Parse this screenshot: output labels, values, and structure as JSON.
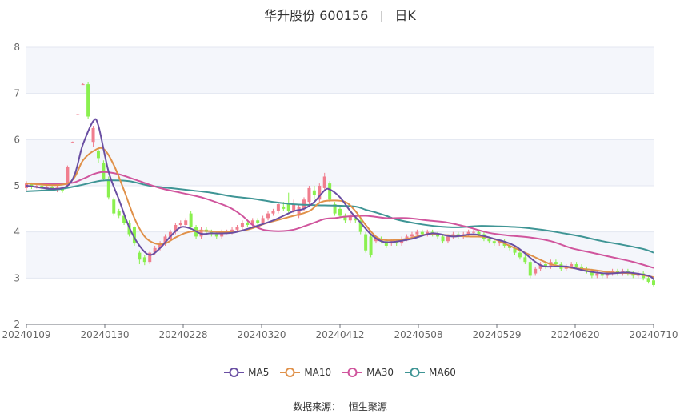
{
  "title": {
    "name": "华升股份 600156",
    "period": "日K"
  },
  "source": {
    "label": "数据来源：",
    "value": "恒生聚源"
  },
  "colors": {
    "up": "#f07e8e",
    "down": "#8af04f",
    "ma5": "#6a4fa3",
    "ma10": "#e0914a",
    "ma30": "#d0559d",
    "ma60": "#3f9595",
    "band": "#f4f6fb",
    "grid": "#e3e7f0"
  },
  "chart_data": {
    "type": "candlestick",
    "ylim": [
      2,
      8
    ],
    "yticks": [
      "2",
      "3",
      "4",
      "5",
      "6",
      "7",
      "8"
    ],
    "xticks": [
      "20240109",
      "20240130",
      "20240228",
      "20240320",
      "20240412",
      "20240508",
      "20240529",
      "20240620",
      "20240710"
    ],
    "legend": [
      "MA5",
      "MA10",
      "MA30",
      "MA60"
    ],
    "candles": [
      {
        "o": 4.95,
        "c": 5.05,
        "h": 5.1,
        "l": 4.9
      },
      {
        "o": 5.03,
        "c": 4.98,
        "h": 5.07,
        "l": 4.93
      },
      {
        "o": 4.97,
        "c": 5.0,
        "h": 5.04,
        "l": 4.94
      },
      {
        "o": 5.0,
        "c": 4.95,
        "h": 5.03,
        "l": 4.91
      },
      {
        "o": 4.95,
        "c": 4.98,
        "h": 5.02,
        "l": 4.92
      },
      {
        "o": 4.98,
        "c": 4.93,
        "h": 5.01,
        "l": 4.89
      },
      {
        "o": 4.92,
        "c": 4.96,
        "h": 5.0,
        "l": 4.86
      },
      {
        "o": 4.95,
        "c": 4.9,
        "h": 4.98,
        "l": 4.85
      },
      {
        "o": 5.0,
        "c": 5.4,
        "h": 5.44,
        "l": 4.98
      },
      {
        "o": 5.95,
        "c": 5.95,
        "h": 5.96,
        "l": 5.94
      },
      {
        "o": 6.55,
        "c": 6.55,
        "h": 6.56,
        "l": 6.54
      },
      {
        "o": 7.2,
        "c": 7.2,
        "h": 7.22,
        "l": 7.19
      },
      {
        "o": 7.2,
        "c": 6.5,
        "h": 7.25,
        "l": 6.45
      },
      {
        "o": 5.95,
        "c": 6.25,
        "h": 6.3,
        "l": 5.85
      },
      {
        "o": 5.75,
        "c": 5.6,
        "h": 5.8,
        "l": 5.5
      },
      {
        "o": 5.5,
        "c": 5.15,
        "h": 5.55,
        "l": 5.1
      },
      {
        "o": 5.15,
        "c": 4.75,
        "h": 5.2,
        "l": 4.7
      },
      {
        "o": 4.7,
        "c": 4.4,
        "h": 4.75,
        "l": 4.35
      },
      {
        "o": 4.45,
        "c": 4.35,
        "h": 4.5,
        "l": 4.3
      },
      {
        "o": 4.35,
        "c": 4.2,
        "h": 4.4,
        "l": 4.15
      },
      {
        "o": 4.2,
        "c": 3.95,
        "h": 4.25,
        "l": 3.9
      },
      {
        "o": 4.1,
        "c": 3.75,
        "h": 4.12,
        "l": 3.7
      },
      {
        "o": 3.55,
        "c": 3.4,
        "h": 3.6,
        "l": 3.3
      },
      {
        "o": 3.45,
        "c": 3.35,
        "h": 3.5,
        "l": 3.28
      },
      {
        "o": 3.35,
        "c": 3.55,
        "h": 3.6,
        "l": 3.3
      },
      {
        "o": 3.55,
        "c": 3.65,
        "h": 3.7,
        "l": 3.5
      },
      {
        "o": 3.65,
        "c": 3.75,
        "h": 3.8,
        "l": 3.6
      },
      {
        "o": 3.75,
        "c": 3.9,
        "h": 3.95,
        "l": 3.7
      },
      {
        "o": 3.85,
        "c": 4.0,
        "h": 4.05,
        "l": 3.8
      },
      {
        "o": 4.0,
        "c": 4.15,
        "h": 4.2,
        "l": 3.95
      },
      {
        "o": 4.15,
        "c": 4.2,
        "h": 4.25,
        "l": 4.1
      },
      {
        "o": 4.15,
        "c": 4.25,
        "h": 4.3,
        "l": 4.1
      },
      {
        "o": 4.4,
        "c": 4.1,
        "h": 4.45,
        "l": 4.05
      },
      {
        "o": 4.1,
        "c": 3.9,
        "h": 4.15,
        "l": 3.85
      },
      {
        "o": 3.9,
        "c": 4.05,
        "h": 4.1,
        "l": 3.85
      },
      {
        "o": 4.05,
        "c": 4.0,
        "h": 4.1,
        "l": 3.95
      },
      {
        "o": 4.0,
        "c": 3.95,
        "h": 4.05,
        "l": 3.9
      },
      {
        "o": 3.95,
        "c": 3.9,
        "h": 4.0,
        "l": 3.85
      },
      {
        "o": 3.9,
        "c": 4.0,
        "h": 4.05,
        "l": 3.85
      },
      {
        "o": 4.0,
        "c": 4.0,
        "h": 4.05,
        "l": 3.95
      },
      {
        "o": 4.0,
        "c": 4.05,
        "h": 4.1,
        "l": 3.95
      },
      {
        "o": 4.05,
        "c": 4.1,
        "h": 4.15,
        "l": 4.0
      },
      {
        "o": 4.1,
        "c": 4.2,
        "h": 4.25,
        "l": 4.05
      },
      {
        "o": 4.2,
        "c": 4.15,
        "h": 4.25,
        "l": 4.1
      },
      {
        "o": 4.15,
        "c": 4.25,
        "h": 4.3,
        "l": 4.1
      },
      {
        "o": 4.25,
        "c": 4.2,
        "h": 4.3,
        "l": 4.15
      },
      {
        "o": 4.2,
        "c": 4.3,
        "h": 4.35,
        "l": 4.15
      },
      {
        "o": 4.3,
        "c": 4.4,
        "h": 4.45,
        "l": 4.25
      },
      {
        "o": 4.4,
        "c": 4.45,
        "h": 4.5,
        "l": 4.35
      },
      {
        "o": 4.45,
        "c": 4.6,
        "h": 4.65,
        "l": 4.4
      },
      {
        "o": 4.55,
        "c": 4.5,
        "h": 4.65,
        "l": 4.45
      },
      {
        "o": 4.6,
        "c": 4.45,
        "h": 4.85,
        "l": 4.4
      },
      {
        "o": 4.45,
        "c": 4.6,
        "h": 4.7,
        "l": 4.4
      },
      {
        "o": 4.35,
        "c": 4.55,
        "h": 4.6,
        "l": 4.3
      },
      {
        "o": 4.5,
        "c": 4.7,
        "h": 4.75,
        "l": 4.45
      },
      {
        "o": 4.65,
        "c": 4.95,
        "h": 5.0,
        "l": 4.6
      },
      {
        "o": 4.9,
        "c": 4.8,
        "h": 5.0,
        "l": 4.7
      },
      {
        "o": 4.7,
        "c": 5.0,
        "h": 5.05,
        "l": 4.65
      },
      {
        "o": 4.95,
        "c": 5.2,
        "h": 5.28,
        "l": 4.9
      },
      {
        "o": 5.05,
        "c": 4.7,
        "h": 5.1,
        "l": 4.65
      },
      {
        "o": 4.6,
        "c": 4.4,
        "h": 4.65,
        "l": 4.35
      },
      {
        "o": 4.5,
        "c": 4.35,
        "h": 4.55,
        "l": 4.3
      },
      {
        "o": 4.35,
        "c": 4.25,
        "h": 4.4,
        "l": 4.2
      },
      {
        "o": 4.25,
        "c": 4.35,
        "h": 4.4,
        "l": 4.2
      },
      {
        "o": 4.3,
        "c": 4.25,
        "h": 4.35,
        "l": 4.2
      },
      {
        "o": 4.25,
        "c": 4.0,
        "h": 4.3,
        "l": 3.95
      },
      {
        "o": 3.95,
        "c": 3.6,
        "h": 4.0,
        "l": 3.55
      },
      {
        "o": 3.9,
        "c": 3.5,
        "h": 3.95,
        "l": 3.45
      },
      {
        "o": 3.8,
        "c": 3.85,
        "h": 3.9,
        "l": 3.75
      },
      {
        "o": 3.85,
        "c": 3.8,
        "h": 3.9,
        "l": 3.75
      },
      {
        "o": 3.8,
        "c": 3.7,
        "h": 3.85,
        "l": 3.65
      },
      {
        "o": 3.75,
        "c": 3.8,
        "h": 3.85,
        "l": 3.7
      },
      {
        "o": 3.8,
        "c": 3.75,
        "h": 3.85,
        "l": 3.7
      },
      {
        "o": 3.75,
        "c": 3.85,
        "h": 3.9,
        "l": 3.7
      },
      {
        "o": 3.85,
        "c": 3.9,
        "h": 3.95,
        "l": 3.8
      },
      {
        "o": 3.9,
        "c": 3.95,
        "h": 4.0,
        "l": 3.85
      },
      {
        "o": 3.95,
        "c": 4.0,
        "h": 4.05,
        "l": 3.9
      },
      {
        "o": 4.0,
        "c": 3.95,
        "h": 4.05,
        "l": 3.9
      },
      {
        "o": 3.95,
        "c": 4.0,
        "h": 4.05,
        "l": 3.9
      },
      {
        "o": 4.0,
        "c": 3.95,
        "h": 4.05,
        "l": 3.9
      },
      {
        "o": 3.95,
        "c": 3.9,
        "h": 4.0,
        "l": 3.85
      },
      {
        "o": 3.9,
        "c": 3.8,
        "h": 3.95,
        "l": 3.75
      },
      {
        "o": 3.8,
        "c": 3.9,
        "h": 3.95,
        "l": 3.75
      },
      {
        "o": 3.9,
        "c": 3.95,
        "h": 4.0,
        "l": 3.85
      },
      {
        "o": 3.95,
        "c": 3.9,
        "h": 4.0,
        "l": 3.85
      },
      {
        "o": 3.9,
        "c": 3.95,
        "h": 4.0,
        "l": 3.85
      },
      {
        "o": 3.95,
        "c": 4.0,
        "h": 4.05,
        "l": 3.9
      },
      {
        "o": 4.0,
        "c": 4.0,
        "h": 4.05,
        "l": 3.95
      },
      {
        "o": 4.0,
        "c": 3.95,
        "h": 4.05,
        "l": 3.9
      },
      {
        "o": 3.95,
        "c": 3.85,
        "h": 4.0,
        "l": 3.8
      },
      {
        "o": 3.85,
        "c": 3.8,
        "h": 3.9,
        "l": 3.75
      },
      {
        "o": 3.8,
        "c": 3.75,
        "h": 3.85,
        "l": 3.7
      },
      {
        "o": 3.75,
        "c": 3.8,
        "h": 3.85,
        "l": 3.7
      },
      {
        "o": 3.8,
        "c": 3.7,
        "h": 3.85,
        "l": 3.65
      },
      {
        "o": 3.7,
        "c": 3.65,
        "h": 3.75,
        "l": 3.6
      },
      {
        "o": 3.65,
        "c": 3.55,
        "h": 3.7,
        "l": 3.5
      },
      {
        "o": 3.55,
        "c": 3.45,
        "h": 3.6,
        "l": 3.4
      },
      {
        "o": 3.45,
        "c": 3.35,
        "h": 3.5,
        "l": 3.3
      },
      {
        "o": 3.35,
        "c": 3.05,
        "h": 3.4,
        "l": 3.0
      },
      {
        "o": 3.1,
        "c": 3.2,
        "h": 3.25,
        "l": 3.05
      },
      {
        "o": 3.2,
        "c": 3.3,
        "h": 3.35,
        "l": 3.15
      },
      {
        "o": 3.3,
        "c": 3.25,
        "h": 3.35,
        "l": 3.2
      },
      {
        "o": 3.25,
        "c": 3.35,
        "h": 3.4,
        "l": 3.2
      },
      {
        "o": 3.35,
        "c": 3.3,
        "h": 3.4,
        "l": 3.25
      },
      {
        "o": 3.3,
        "c": 3.2,
        "h": 3.35,
        "l": 3.15
      },
      {
        "o": 3.2,
        "c": 3.25,
        "h": 3.3,
        "l": 3.15
      },
      {
        "o": 3.25,
        "c": 3.3,
        "h": 3.35,
        "l": 3.2
      },
      {
        "o": 3.3,
        "c": 3.25,
        "h": 3.35,
        "l": 3.2
      },
      {
        "o": 3.25,
        "c": 3.2,
        "h": 3.3,
        "l": 3.15
      },
      {
        "o": 3.2,
        "c": 3.15,
        "h": 3.25,
        "l": 3.1
      },
      {
        "o": 3.15,
        "c": 3.05,
        "h": 3.2,
        "l": 3.0
      },
      {
        "o": 3.05,
        "c": 3.1,
        "h": 3.15,
        "l": 3.0
      },
      {
        "o": 3.1,
        "c": 3.05,
        "h": 3.15,
        "l": 3.0
      },
      {
        "o": 3.05,
        "c": 3.1,
        "h": 3.15,
        "l": 3.0
      },
      {
        "o": 3.1,
        "c": 3.15,
        "h": 3.2,
        "l": 3.05
      },
      {
        "o": 3.15,
        "c": 3.1,
        "h": 3.2,
        "l": 3.05
      },
      {
        "o": 3.1,
        "c": 3.15,
        "h": 3.2,
        "l": 3.05
      },
      {
        "o": 3.15,
        "c": 3.1,
        "h": 3.2,
        "l": 3.05
      },
      {
        "o": 3.1,
        "c": 3.05,
        "h": 3.15,
        "l": 3.0
      },
      {
        "o": 3.05,
        "c": 3.1,
        "h": 3.15,
        "l": 3.0
      },
      {
        "o": 3.1,
        "c": 3.0,
        "h": 3.15,
        "l": 2.95
      },
      {
        "o": 3.0,
        "c": 2.92,
        "h": 3.05,
        "l": 2.88
      },
      {
        "o": 2.95,
        "c": 2.85,
        "h": 3.0,
        "l": 2.82
      }
    ],
    "ma": {
      "MA5": [
        [
          0,
          5.0
        ],
        [
          8,
          5.0
        ],
        [
          11,
          5.9
        ],
        [
          13,
          6.4
        ],
        [
          14,
          6.3
        ],
        [
          16,
          5.3
        ],
        [
          18,
          4.7
        ],
        [
          20,
          4.1
        ],
        [
          22,
          3.7
        ],
        [
          24,
          3.5
        ],
        [
          26,
          3.65
        ],
        [
          28,
          3.9
        ],
        [
          30,
          4.1
        ],
        [
          32,
          4.07
        ],
        [
          34,
          3.96
        ],
        [
          36,
          3.97
        ],
        [
          40,
          3.98
        ],
        [
          44,
          4.1
        ],
        [
          48,
          4.25
        ],
        [
          52,
          4.45
        ],
        [
          54,
          4.5
        ],
        [
          56,
          4.65
        ],
        [
          58,
          4.9
        ],
        [
          59,
          4.92
        ],
        [
          61,
          4.75
        ],
        [
          63,
          4.45
        ],
        [
          65,
          4.2
        ],
        [
          67,
          3.95
        ],
        [
          69,
          3.8
        ],
        [
          71,
          3.78
        ],
        [
          75,
          3.85
        ],
        [
          79,
          3.97
        ],
        [
          83,
          3.9
        ],
        [
          87,
          3.95
        ],
        [
          91,
          3.85
        ],
        [
          95,
          3.7
        ],
        [
          99,
          3.35
        ],
        [
          101,
          3.25
        ],
        [
          105,
          3.25
        ],
        [
          109,
          3.15
        ],
        [
          113,
          3.1
        ],
        [
          117,
          3.12
        ],
        [
          121,
          3.05
        ],
        [
          122,
          2.97
        ]
      ],
      "MA10": [
        [
          0,
          5.05
        ],
        [
          8,
          5.05
        ],
        [
          11,
          5.55
        ],
        [
          13,
          5.75
        ],
        [
          15,
          5.8
        ],
        [
          17,
          5.45
        ],
        [
          19,
          4.9
        ],
        [
          21,
          4.3
        ],
        [
          23,
          3.9
        ],
        [
          25,
          3.75
        ],
        [
          27,
          3.75
        ],
        [
          29,
          3.88
        ],
        [
          31,
          3.98
        ],
        [
          33,
          4.02
        ],
        [
          35,
          4.02
        ],
        [
          39,
          4.0
        ],
        [
          43,
          4.05
        ],
        [
          47,
          4.2
        ],
        [
          51,
          4.32
        ],
        [
          55,
          4.45
        ],
        [
          57,
          4.63
        ],
        [
          59,
          4.68
        ],
        [
          62,
          4.65
        ],
        [
          64,
          4.45
        ],
        [
          66,
          4.15
        ],
        [
          68,
          3.9
        ],
        [
          70,
          3.82
        ],
        [
          74,
          3.85
        ],
        [
          78,
          3.95
        ],
        [
          82,
          3.93
        ],
        [
          86,
          3.9
        ],
        [
          90,
          3.88
        ],
        [
          94,
          3.7
        ],
        [
          98,
          3.5
        ],
        [
          102,
          3.3
        ],
        [
          106,
          3.22
        ],
        [
          110,
          3.18
        ],
        [
          114,
          3.12
        ],
        [
          118,
          3.1
        ],
        [
          122,
          3.02
        ]
      ],
      "MA30": [
        [
          0,
          5.05
        ],
        [
          8,
          5.05
        ],
        [
          11,
          5.15
        ],
        [
          13,
          5.25
        ],
        [
          15,
          5.3
        ],
        [
          18,
          5.25
        ],
        [
          22,
          5.1
        ],
        [
          26,
          4.95
        ],
        [
          30,
          4.85
        ],
        [
          34,
          4.75
        ],
        [
          38,
          4.6
        ],
        [
          40,
          4.5
        ],
        [
          42,
          4.35
        ],
        [
          44,
          4.15
        ],
        [
          46,
          4.05
        ],
        [
          48,
          4.02
        ],
        [
          50,
          4.02
        ],
        [
          52,
          4.05
        ],
        [
          54,
          4.12
        ],
        [
          56,
          4.2
        ],
        [
          58,
          4.28
        ],
        [
          60,
          4.3
        ],
        [
          62,
          4.33
        ],
        [
          66,
          4.35
        ],
        [
          70,
          4.3
        ],
        [
          74,
          4.3
        ],
        [
          78,
          4.25
        ],
        [
          82,
          4.2
        ],
        [
          86,
          4.1
        ],
        [
          90,
          3.98
        ],
        [
          94,
          3.92
        ],
        [
          98,
          3.88
        ],
        [
          102,
          3.8
        ],
        [
          106,
          3.65
        ],
        [
          110,
          3.55
        ],
        [
          114,
          3.45
        ],
        [
          118,
          3.35
        ],
        [
          122,
          3.22
        ]
      ],
      "MA60": [
        [
          0,
          4.88
        ],
        [
          6,
          4.92
        ],
        [
          10,
          5.0
        ],
        [
          12,
          5.05
        ],
        [
          14,
          5.1
        ],
        [
          16,
          5.12
        ],
        [
          20,
          5.1
        ],
        [
          24,
          5.0
        ],
        [
          28,
          4.95
        ],
        [
          32,
          4.9
        ],
        [
          36,
          4.85
        ],
        [
          40,
          4.77
        ],
        [
          44,
          4.72
        ],
        [
          48,
          4.65
        ],
        [
          52,
          4.6
        ],
        [
          56,
          4.58
        ],
        [
          60,
          4.57
        ],
        [
          64,
          4.55
        ],
        [
          66,
          4.48
        ],
        [
          68,
          4.42
        ],
        [
          70,
          4.35
        ],
        [
          72,
          4.27
        ],
        [
          76,
          4.18
        ],
        [
          80,
          4.12
        ],
        [
          84,
          4.1
        ],
        [
          88,
          4.13
        ],
        [
          92,
          4.12
        ],
        [
          96,
          4.1
        ],
        [
          100,
          4.05
        ],
        [
          104,
          3.98
        ],
        [
          108,
          3.9
        ],
        [
          112,
          3.8
        ],
        [
          116,
          3.72
        ],
        [
          120,
          3.63
        ],
        [
          122,
          3.55
        ]
      ]
    }
  }
}
